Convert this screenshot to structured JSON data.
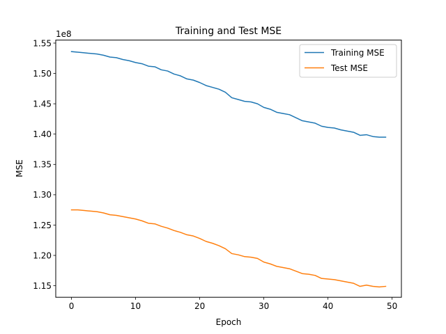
{
  "chart_data": {
    "type": "line",
    "title": "Training and Test MSE",
    "xlabel": "Epoch",
    "ylabel": "MSE",
    "y_offset_label": "1e8",
    "y_scale": 100000000,
    "xlim": [
      -2.45,
      51.45
    ],
    "ylim": [
      1.131,
      1.555
    ],
    "x_ticks": [
      0,
      10,
      20,
      30,
      40,
      50
    ],
    "x_tick_labels": [
      "0",
      "10",
      "20",
      "30",
      "40",
      "50"
    ],
    "y_ticks": [
      1.15,
      1.2,
      1.25,
      1.3,
      1.35,
      1.4,
      1.45,
      1.5,
      1.55
    ],
    "y_tick_labels": [
      "1.15",
      "1.20",
      "1.25",
      "1.30",
      "1.35",
      "1.40",
      "1.45",
      "1.50",
      "1.55"
    ],
    "grid": false,
    "legend_position": "top-right",
    "x": [
      0,
      1,
      2,
      3,
      4,
      5,
      6,
      7,
      8,
      9,
      10,
      11,
      12,
      13,
      14,
      15,
      16,
      17,
      18,
      19,
      20,
      21,
      22,
      23,
      24,
      25,
      26,
      27,
      28,
      29,
      30,
      31,
      32,
      33,
      34,
      35,
      36,
      37,
      38,
      39,
      40,
      41,
      42,
      43,
      44,
      45,
      46,
      47,
      48,
      49
    ],
    "series": [
      {
        "name": "Training MSE",
        "color": "#1f77b4",
        "values": [
          1.536,
          1.535,
          1.534,
          1.533,
          1.532,
          1.53,
          1.527,
          1.526,
          1.523,
          1.521,
          1.518,
          1.516,
          1.512,
          1.511,
          1.506,
          1.504,
          1.499,
          1.496,
          1.491,
          1.489,
          1.485,
          1.48,
          1.477,
          1.474,
          1.469,
          1.46,
          1.457,
          1.454,
          1.453,
          1.45,
          1.444,
          1.441,
          1.436,
          1.434,
          1.432,
          1.427,
          1.422,
          1.42,
          1.418,
          1.413,
          1.411,
          1.41,
          1.407,
          1.405,
          1.403,
          1.398,
          1.399,
          1.396,
          1.395,
          1.395
        ]
      },
      {
        "name": "Test MSE",
        "color": "#ff7f0e",
        "values": [
          1.275,
          1.275,
          1.274,
          1.273,
          1.272,
          1.27,
          1.267,
          1.266,
          1.264,
          1.262,
          1.26,
          1.257,
          1.253,
          1.252,
          1.248,
          1.245,
          1.241,
          1.238,
          1.234,
          1.232,
          1.228,
          1.223,
          1.22,
          1.216,
          1.211,
          1.203,
          1.201,
          1.198,
          1.197,
          1.195,
          1.189,
          1.186,
          1.182,
          1.18,
          1.178,
          1.174,
          1.17,
          1.169,
          1.167,
          1.162,
          1.161,
          1.16,
          1.158,
          1.156,
          1.154,
          1.149,
          1.151,
          1.149,
          1.148,
          1.149
        ]
      }
    ]
  }
}
